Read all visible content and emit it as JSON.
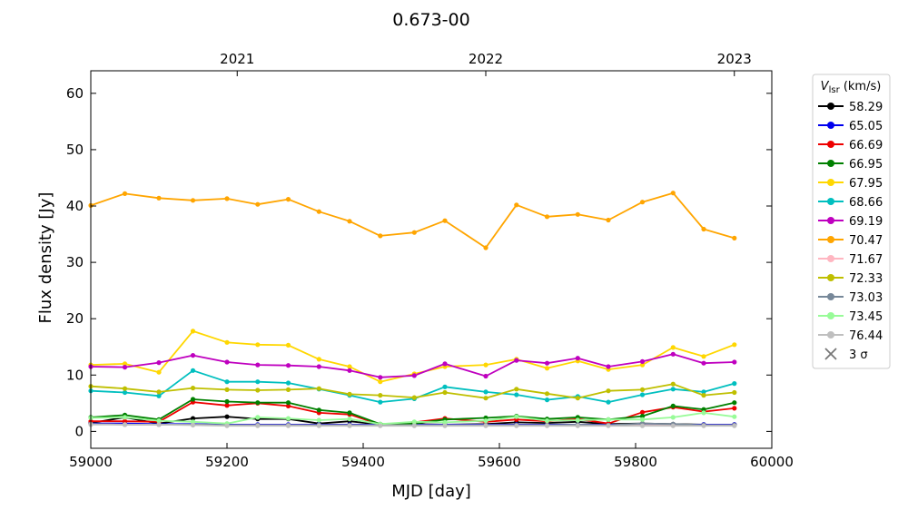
{
  "chart_data": {
    "type": "line",
    "title": "0.673-00",
    "xlabel": "MJD [day]",
    "ylabel": "Flux density [Jy]",
    "xlim": [
      59000,
      60000
    ],
    "ylim": [
      -3,
      64
    ],
    "xticks": [
      59000,
      59200,
      59400,
      59600,
      59800,
      60000
    ],
    "yticks": [
      0,
      10,
      20,
      30,
      40,
      50,
      60
    ],
    "top_axis": {
      "ticks": [
        {
          "label": "2021",
          "mjd": 59215
        },
        {
          "label": "2022",
          "mjd": 59580
        },
        {
          "label": "2023",
          "mjd": 59945
        }
      ]
    },
    "legend": {
      "title_main": "V",
      "title_sub": "lsr",
      "title_unit": " (km/s)",
      "position": "outside-right",
      "sigma_label": "3 σ"
    },
    "x": [
      59000,
      59050,
      59100,
      59150,
      59200,
      59245,
      59290,
      59335,
      59380,
      59425,
      59475,
      59520,
      59580,
      59625,
      59670,
      59715,
      59760,
      59810,
      59855,
      59900,
      59945
    ],
    "series": [
      {
        "name": "58.29",
        "color": "#000000",
        "values": [
          1.5,
          2.5,
          1.4,
          2.3,
          2.6,
          2.2,
          2.2,
          1.4,
          1.8,
          1.2,
          1.3,
          1.2,
          1.3,
          1.6,
          1.5,
          1.7,
          1.3,
          1.4,
          1.3,
          1.2,
          1.2
        ]
      },
      {
        "name": "65.05",
        "color": "#0000ee",
        "values": [
          1.4,
          1.4,
          1.3,
          1.3,
          1.2,
          1.2,
          1.2,
          1.2,
          1.2,
          1.2,
          1.2,
          1.2,
          1.2,
          1.2,
          1.2,
          1.2,
          1.2,
          1.2,
          1.2,
          1.2,
          1.2
        ]
      },
      {
        "name": "66.69",
        "color": "#ee0000",
        "values": [
          1.8,
          1.8,
          1.7,
          5.2,
          4.6,
          5.0,
          4.5,
          3.3,
          3.0,
          1.2,
          1.6,
          2.3,
          1.7,
          2.1,
          1.8,
          2.2,
          1.4,
          3.4,
          4.3,
          3.5,
          4.1
        ]
      },
      {
        "name": "66.95",
        "color": "#008000",
        "values": [
          2.5,
          2.9,
          2.1,
          5.7,
          5.3,
          5.1,
          5.1,
          3.8,
          3.3,
          1.3,
          1.4,
          2.1,
          2.4,
          2.7,
          2.2,
          2.5,
          2.1,
          2.7,
          4.5,
          3.9,
          5.1
        ]
      },
      {
        "name": "67.95",
        "color": "#ffd700",
        "values": [
          11.8,
          12.0,
          10.5,
          17.8,
          15.8,
          15.4,
          15.3,
          12.8,
          11.5,
          8.8,
          10.2,
          11.5,
          11.8,
          12.8,
          11.2,
          12.5,
          11.0,
          11.8,
          14.9,
          13.3,
          15.4
        ]
      },
      {
        "name": "68.66",
        "color": "#00bfbf",
        "values": [
          7.2,
          6.9,
          6.3,
          10.8,
          8.8,
          8.8,
          8.6,
          7.5,
          6.4,
          5.2,
          5.8,
          7.9,
          7.0,
          6.5,
          5.6,
          6.2,
          5.2,
          6.5,
          7.5,
          7.0,
          8.5
        ]
      },
      {
        "name": "69.19",
        "color": "#bf00bf",
        "values": [
          11.5,
          11.4,
          12.2,
          13.5,
          12.3,
          11.8,
          11.7,
          11.5,
          10.8,
          9.6,
          9.9,
          12.0,
          9.8,
          12.6,
          12.1,
          13.0,
          11.5,
          12.4,
          13.7,
          12.1,
          12.3
        ]
      },
      {
        "name": "70.47",
        "color": "#ffa500",
        "values": [
          40.1,
          42.2,
          41.4,
          41.0,
          41.3,
          40.3,
          41.2,
          39.0,
          37.3,
          34.7,
          35.3,
          37.4,
          32.6,
          40.2,
          38.1,
          38.5,
          37.5,
          40.7,
          42.3,
          35.9,
          34.3
        ]
      },
      {
        "name": "71.67",
        "color": "#ffb6c1",
        "values": [
          1.3,
          1.2,
          1.2,
          1.2,
          1.1,
          1.1,
          1.1,
          1.1,
          1.1,
          1.1,
          1.1,
          1.1,
          1.1,
          1.1,
          1.1,
          1.1,
          1.1,
          1.1,
          1.1,
          1.1,
          1.1
        ]
      },
      {
        "name": "72.33",
        "color": "#bfbf00",
        "values": [
          8.0,
          7.6,
          7.0,
          7.7,
          7.4,
          7.3,
          7.4,
          7.6,
          6.6,
          6.4,
          6.0,
          6.9,
          5.9,
          7.5,
          6.7,
          5.9,
          7.2,
          7.4,
          8.4,
          6.4,
          6.9
        ]
      },
      {
        "name": "73.03",
        "color": "#778899",
        "values": [
          1.3,
          1.2,
          1.2,
          1.2,
          1.1,
          1.1,
          1.1,
          1.1,
          1.1,
          1.1,
          1.1,
          1.1,
          1.1,
          1.1,
          1.1,
          1.2,
          1.1,
          1.4,
          1.3,
          1.1,
          1.1
        ]
      },
      {
        "name": "73.45",
        "color": "#98fb98",
        "values": [
          2.4,
          2.5,
          1.9,
          1.7,
          1.4,
          2.5,
          2.3,
          2.0,
          2.2,
          1.3,
          1.7,
          1.6,
          1.9,
          2.6,
          1.9,
          2.0,
          2.1,
          2.1,
          2.5,
          3.3,
          2.6
        ]
      },
      {
        "name": "76.44",
        "color": "#bfbfbf",
        "values": [
          1.2,
          1.2,
          1.2,
          1.1,
          1.0,
          1.0,
          1.0,
          1.0,
          1.0,
          1.0,
          1.0,
          1.0,
          1.0,
          1.0,
          1.0,
          1.0,
          1.0,
          1.0,
          1.0,
          1.0,
          1.0
        ]
      }
    ]
  }
}
